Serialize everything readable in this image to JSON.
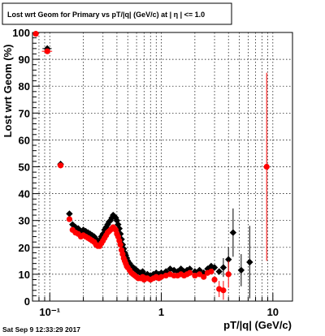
{
  "header": {
    "title": "Lost wrt Geom for Primary vs pT/|q| (GeV/c) at |  η | <= 1.0"
  },
  "footer": {
    "timestamp": "Sat Sep  9 12:33:29 2017"
  },
  "chart_data": {
    "type": "scatter",
    "title": "Lost wrt Geom for Primary vs pT/|q| (GeV/c) at |  η | <= 1.0",
    "xlabel": "pT/|q| (GeV/c)",
    "ylabel": "Lost wrt Geom (%)",
    "xscale": "log",
    "xlim": [
      0.07,
      15
    ],
    "ylim": [
      0,
      100
    ],
    "grid": true,
    "yticks": [
      "0",
      "10",
      "20",
      "30",
      "40",
      "50",
      "60",
      "70",
      "80",
      "90",
      "100"
    ],
    "xticks": [
      "10⁻¹",
      "1",
      "10"
    ],
    "series": [
      {
        "color": "#000000",
        "marker": "diamond",
        "points": [
          [
            0.095,
            94.0,
            0,
            0.009
          ],
          [
            0.125,
            51.0,
            0,
            0.007
          ],
          [
            0.15,
            32.5,
            0,
            0
          ],
          [
            0.16,
            28.5,
            0,
            0
          ],
          [
            0.17,
            27.5,
            0,
            0
          ],
          [
            0.18,
            27.0,
            0,
            0
          ],
          [
            0.19,
            26.0,
            0,
            0
          ],
          [
            0.2,
            26.5,
            0,
            0
          ],
          [
            0.21,
            26.0,
            0,
            0
          ],
          [
            0.22,
            25.5,
            0,
            0
          ],
          [
            0.23,
            25.0,
            0,
            0
          ],
          [
            0.24,
            24.5,
            0,
            0
          ],
          [
            0.25,
            24.0,
            0,
            0
          ],
          [
            0.26,
            23.0,
            0,
            0
          ],
          [
            0.27,
            22.5,
            0,
            0
          ],
          [
            0.28,
            22.5,
            0,
            0
          ],
          [
            0.29,
            24.0,
            0,
            0
          ],
          [
            0.3,
            25.0,
            0,
            0
          ],
          [
            0.31,
            26.5,
            0,
            0
          ],
          [
            0.32,
            27.5,
            0,
            0
          ],
          [
            0.33,
            28.5,
            0,
            0
          ],
          [
            0.34,
            29.5,
            0,
            0
          ],
          [
            0.35,
            30.0,
            0,
            0
          ],
          [
            0.36,
            31.0,
            0,
            0
          ],
          [
            0.37,
            32.0,
            0,
            0
          ],
          [
            0.38,
            31.5,
            0,
            0
          ],
          [
            0.39,
            31.0,
            0,
            0
          ],
          [
            0.4,
            30.0,
            0,
            0
          ],
          [
            0.41,
            28.5,
            0,
            0
          ],
          [
            0.42,
            27.0,
            0,
            0
          ],
          [
            0.43,
            25.0,
            0,
            0
          ],
          [
            0.44,
            23.0,
            0,
            0
          ],
          [
            0.45,
            21.0,
            0,
            0
          ],
          [
            0.46,
            19.5,
            0,
            0
          ],
          [
            0.47,
            18.0,
            0,
            0
          ],
          [
            0.48,
            17.0,
            0,
            0
          ],
          [
            0.49,
            16.0,
            0,
            0
          ],
          [
            0.5,
            15.0,
            0,
            0
          ],
          [
            0.52,
            14.0,
            0,
            0
          ],
          [
            0.54,
            13.0,
            0,
            0
          ],
          [
            0.56,
            12.5,
            0,
            0
          ],
          [
            0.58,
            12.0,
            0,
            0
          ],
          [
            0.6,
            11.5,
            0,
            0
          ],
          [
            0.62,
            11.0,
            0,
            0
          ],
          [
            0.65,
            10.5,
            0,
            0
          ],
          [
            0.68,
            11.0,
            0,
            0
          ],
          [
            0.7,
            10.0,
            0,
            0
          ],
          [
            0.72,
            9.5,
            0,
            0
          ],
          [
            0.75,
            10.0,
            0,
            0
          ],
          [
            0.8,
            9.5,
            0,
            0
          ],
          [
            0.85,
            10.0,
            0,
            0
          ],
          [
            0.9,
            10.5,
            0,
            0
          ],
          [
            0.95,
            10.0,
            0,
            0
          ],
          [
            1.0,
            10.5,
            0,
            0
          ],
          [
            1.1,
            11.0,
            0,
            0
          ],
          [
            1.2,
            12.0,
            0,
            0
          ],
          [
            1.3,
            11.5,
            0,
            0
          ],
          [
            1.4,
            11.0,
            0,
            0
          ],
          [
            1.5,
            12.0,
            0,
            0
          ],
          [
            1.6,
            11.0,
            0,
            0
          ],
          [
            1.7,
            11.5,
            0,
            0
          ],
          [
            1.8,
            12.0,
            0,
            0
          ],
          [
            2.0,
            11.0,
            0,
            0
          ],
          [
            2.2,
            11.5,
            0,
            0
          ],
          [
            2.4,
            10.5,
            0,
            0
          ],
          [
            2.6,
            12.0,
            0,
            0
          ],
          [
            2.8,
            13.0,
            0,
            0
          ],
          [
            3.0,
            12.5,
            0,
            0
          ],
          [
            3.3,
            11.0,
            0,
            0
          ],
          [
            3.6,
            12.5,
            3.5,
            0
          ],
          [
            4.0,
            15.5,
            4.5,
            0
          ],
          [
            4.4,
            25.5,
            9.0,
            0
          ],
          [
            5.2,
            11.5,
            6.0,
            0
          ],
          [
            6.2,
            14.5,
            13.5,
            0
          ]
        ]
      },
      {
        "color": "#ff0000",
        "marker": "circle",
        "points": [
          [
            0.075,
            99.5,
            0,
            0
          ],
          [
            0.095,
            93.0,
            0,
            0.01
          ],
          [
            0.125,
            50.5,
            0,
            0.008
          ],
          [
            0.15,
            30.5,
            0,
            0
          ],
          [
            0.16,
            26.5,
            0,
            0
          ],
          [
            0.17,
            25.5,
            0,
            0
          ],
          [
            0.18,
            25.0,
            0,
            0
          ],
          [
            0.19,
            24.0,
            0,
            0
          ],
          [
            0.2,
            24.5,
            0,
            0
          ],
          [
            0.21,
            24.0,
            0,
            0
          ],
          [
            0.22,
            23.5,
            0,
            0
          ],
          [
            0.23,
            23.0,
            0,
            0
          ],
          [
            0.24,
            22.5,
            0,
            0
          ],
          [
            0.25,
            22.0,
            0,
            0
          ],
          [
            0.26,
            21.0,
            0,
            0
          ],
          [
            0.27,
            20.5,
            0,
            0
          ],
          [
            0.28,
            20.5,
            0,
            0
          ],
          [
            0.29,
            21.5,
            0,
            0
          ],
          [
            0.3,
            22.5,
            0,
            0
          ],
          [
            0.31,
            23.5,
            0,
            0
          ],
          [
            0.32,
            24.5,
            0,
            0
          ],
          [
            0.33,
            25.5,
            0,
            0
          ],
          [
            0.34,
            26.0,
            0,
            0
          ],
          [
            0.35,
            26.5,
            0,
            0
          ],
          [
            0.36,
            27.0,
            0,
            0
          ],
          [
            0.37,
            27.5,
            0,
            0
          ],
          [
            0.38,
            27.0,
            0,
            0
          ],
          [
            0.39,
            26.5,
            0,
            0
          ],
          [
            0.4,
            25.0,
            0,
            0
          ],
          [
            0.41,
            24.0,
            0,
            0
          ],
          [
            0.42,
            22.5,
            0,
            0
          ],
          [
            0.43,
            21.0,
            0,
            0
          ],
          [
            0.44,
            19.0,
            0,
            0
          ],
          [
            0.45,
            17.5,
            0,
            0
          ],
          [
            0.46,
            16.0,
            0,
            0
          ],
          [
            0.47,
            15.0,
            0,
            0
          ],
          [
            0.48,
            14.0,
            0,
            0
          ],
          [
            0.49,
            13.0,
            0,
            0
          ],
          [
            0.5,
            12.5,
            0,
            0
          ],
          [
            0.52,
            11.5,
            0,
            0
          ],
          [
            0.54,
            10.5,
            0,
            0
          ],
          [
            0.56,
            10.0,
            0,
            0
          ],
          [
            0.58,
            9.5,
            0,
            0
          ],
          [
            0.6,
            9.0,
            0,
            0
          ],
          [
            0.62,
            8.5,
            0,
            0
          ],
          [
            0.65,
            8.5,
            0,
            0
          ],
          [
            0.68,
            9.0,
            0,
            0
          ],
          [
            0.7,
            8.0,
            0,
            0
          ],
          [
            0.72,
            8.5,
            0,
            0
          ],
          [
            0.75,
            8.5,
            0,
            0
          ],
          [
            0.8,
            8.0,
            0,
            0
          ],
          [
            0.85,
            8.5,
            0,
            0
          ],
          [
            0.9,
            9.0,
            0,
            0
          ],
          [
            0.95,
            8.5,
            0,
            0
          ],
          [
            1.0,
            9.0,
            0,
            0
          ],
          [
            1.1,
            9.5,
            0,
            0
          ],
          [
            1.2,
            10.0,
            0,
            0
          ],
          [
            1.3,
            9.5,
            0,
            0
          ],
          [
            1.4,
            9.5,
            0,
            0
          ],
          [
            1.5,
            10.0,
            0,
            0
          ],
          [
            1.6,
            9.5,
            0,
            0
          ],
          [
            1.7,
            10.0,
            0,
            0
          ],
          [
            1.8,
            10.5,
            0,
            0
          ],
          [
            2.0,
            9.5,
            0,
            0
          ],
          [
            2.2,
            10.0,
            0,
            0
          ],
          [
            2.4,
            9.0,
            0,
            0
          ],
          [
            2.6,
            10.5,
            0,
            0
          ],
          [
            2.8,
            11.0,
            0,
            0
          ],
          [
            3.0,
            8.0,
            0,
            0
          ],
          [
            3.3,
            4.5,
            3.0,
            0
          ],
          [
            3.6,
            4.0,
            3.5,
            0
          ],
          [
            4.0,
            10.0,
            5.0,
            0
          ],
          [
            8.8,
            50.0,
            35.0,
            0
          ]
        ]
      }
    ]
  }
}
